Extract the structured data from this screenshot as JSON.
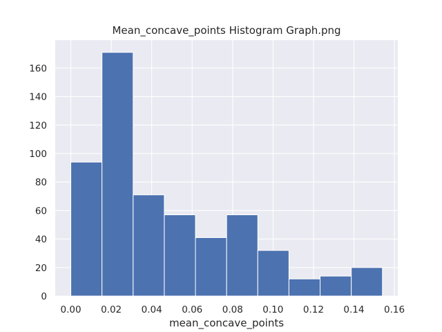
{
  "chart_data": {
    "type": "bar",
    "subtype": "histogram",
    "title": "Mean_concave_points Histogram Graph.png",
    "xlabel": "mean_concave_points",
    "ylabel": "",
    "xlim": [
      -0.0077,
      0.1617
    ],
    "ylim": [
      0,
      179.6
    ],
    "xticks": [
      0.0,
      0.02,
      0.04,
      0.06,
      0.08,
      0.1,
      0.12,
      0.14,
      0.16
    ],
    "xtick_labels": [
      "0.00",
      "0.02",
      "0.04",
      "0.06",
      "0.08",
      "0.10",
      "0.12",
      "0.14",
      "0.16"
    ],
    "yticks": [
      0,
      20,
      40,
      60,
      80,
      100,
      120,
      140,
      160
    ],
    "ytick_labels": [
      "0",
      "20",
      "40",
      "60",
      "80",
      "100",
      "120",
      "140",
      "160"
    ],
    "bin_edges": [
      0.0,
      0.01541,
      0.03082,
      0.04623,
      0.06164,
      0.07705,
      0.09246,
      0.10787,
      0.12328,
      0.13869,
      0.1541
    ],
    "values": [
      94,
      171,
      71,
      57,
      41,
      57,
      32,
      12,
      14,
      20
    ],
    "bar_color": "#4c72b0",
    "grid": true,
    "background_color": "#eaeaf2",
    "grid_color": "#ffffff"
  }
}
